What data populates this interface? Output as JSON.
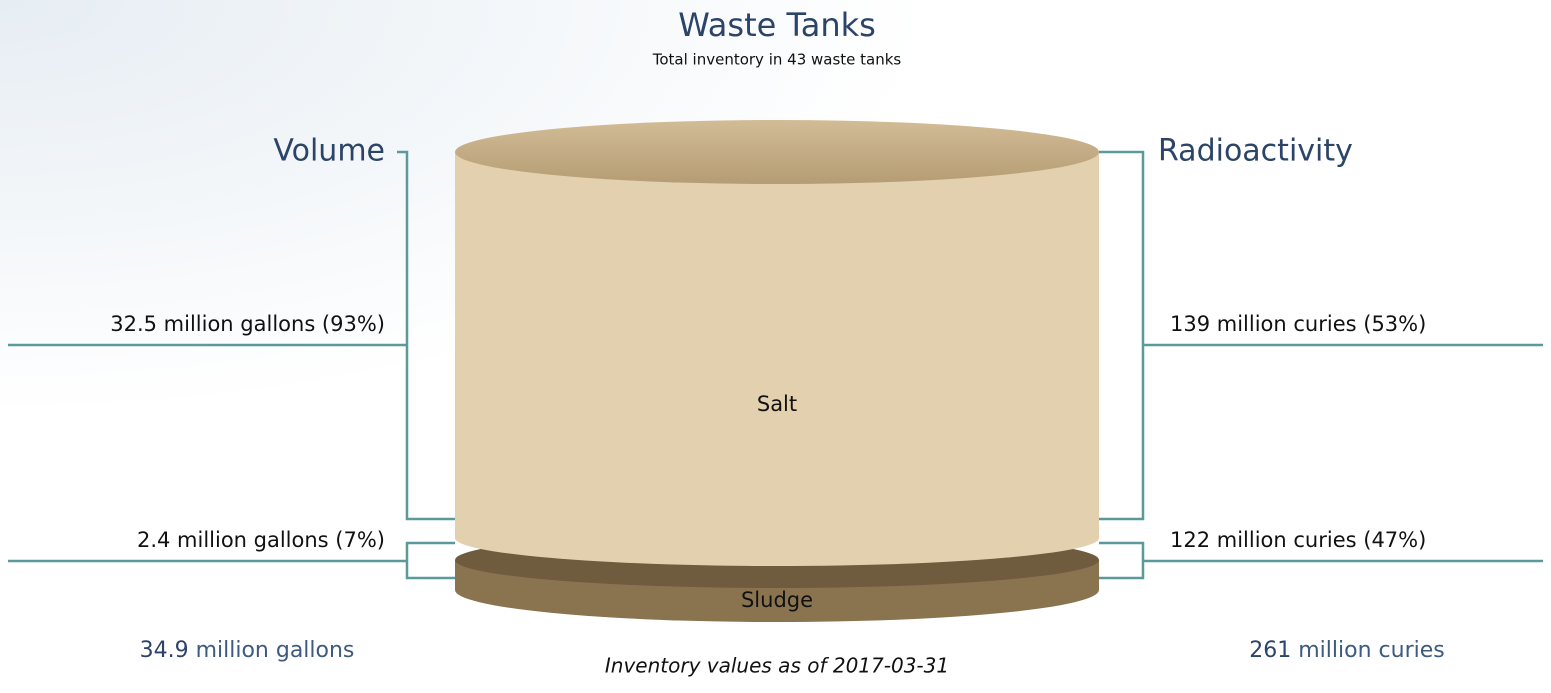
{
  "header": {
    "title": "Waste Tanks",
    "subtitle": "Total inventory in 43 waste tanks"
  },
  "volume": {
    "heading": "Volume",
    "salt": "32.5 million gallons (93%)",
    "sludge": "2.4 million gallons (7%)",
    "total_value": "34.9",
    "total_unit": "million gallons"
  },
  "radioactivity": {
    "heading": "Radioactivity",
    "salt": "139 million curies (53%)",
    "sludge": "122 million curies (47%)",
    "total_value": "261",
    "total_unit": "million curies"
  },
  "tank": {
    "salt_label": "Salt",
    "sludge_label": "Sludge"
  },
  "footnote": "Inventory values as of 2017-03-31"
}
